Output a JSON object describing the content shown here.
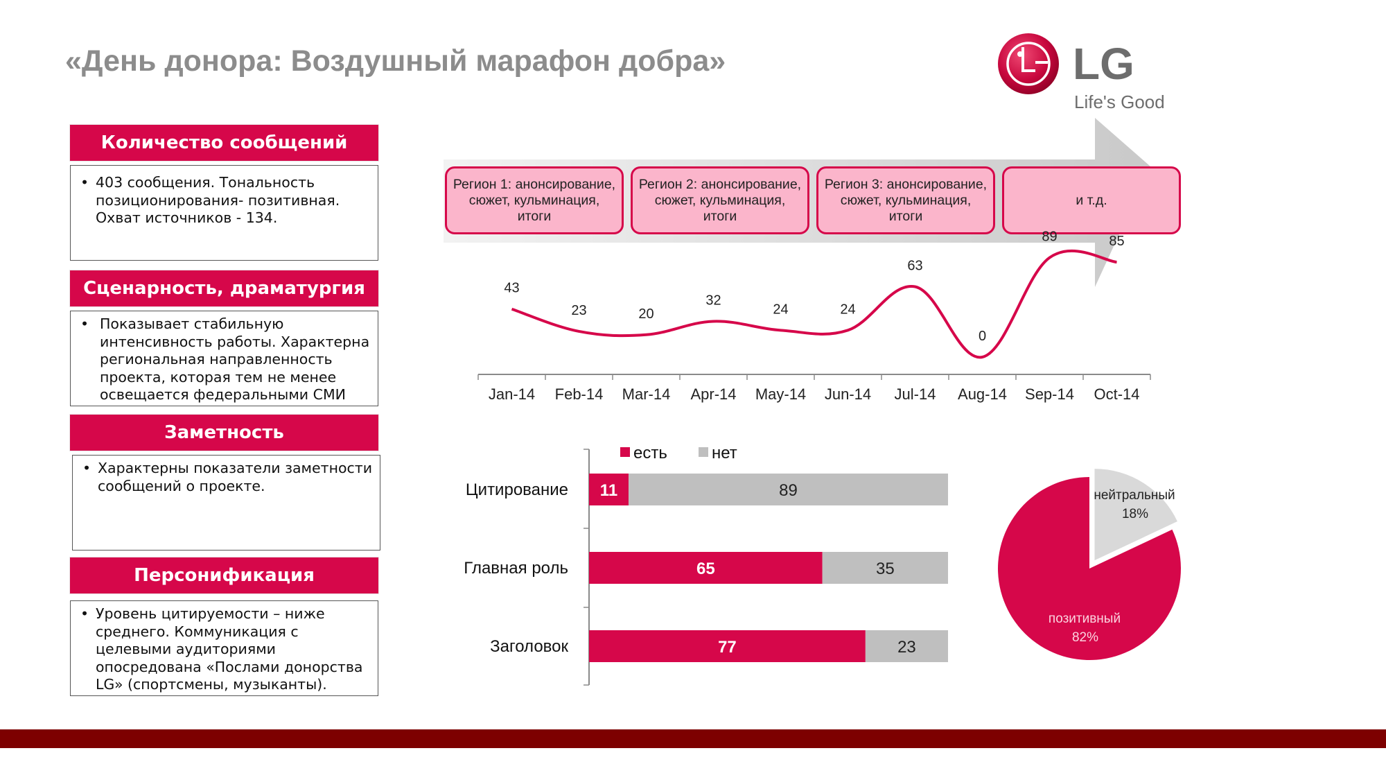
{
  "title": "«День донора: Воздушный марафон добра»",
  "logo": {
    "brand": "LG",
    "tagline": "Life's Good"
  },
  "colors": {
    "accent": "#d6074a",
    "pink": "#fbb5cb",
    "gray": "#bfbfbf",
    "footer": "#7d0000",
    "title": "#8c8c8c"
  },
  "sections": [
    {
      "heading": "Количество сообщений",
      "lines": [
        "403 сообщения.  Тональность позиционирования- позитивная. Охват источников - 134."
      ]
    },
    {
      "heading": "Сценарность, драматургия",
      "lines": [
        "Показывает стабильную интенсивность работы. Характерна региональная направленность проекта, которая тем не менее освещается федеральными СМИ"
      ]
    },
    {
      "heading": "Заметность",
      "lines": [
        "Характерны показатели заметности сообщений о проекте."
      ]
    },
    {
      "heading": "Персонификация",
      "lines": [
        "Уровень цитируемости – ниже среднего.  Коммуникация с целевыми аудиториями опосредована «Послами донорства LG» (спортсмены, музыканты)."
      ]
    }
  ],
  "regions": [
    "Регион 1: анонсирование, сюжет, кульминация, итоги",
    "Регион 2: анонсирование, сюжет, кульминация, итоги",
    "Регион 3: анонсирование, сюжет, кульминация, итоги",
    "и т.д."
  ],
  "chart_data": [
    {
      "type": "line",
      "categories": [
        "Jan-14",
        "Feb-14",
        "Mar-14",
        "Apr-14",
        "May-14",
        "Jun-14",
        "Jul-14",
        "Aug-14",
        "Sep-14",
        "Oct-14"
      ],
      "values": [
        43,
        23,
        20,
        32,
        24,
        24,
        63,
        0,
        89,
        85
      ],
      "smooth": true,
      "data_labels": true,
      "color": "#d6074a"
    },
    {
      "type": "bar",
      "orientation": "horizontal",
      "stacked": true,
      "categories": [
        "Цитирование",
        "Главная роль",
        "Заголовок"
      ],
      "series": [
        {
          "name": "есть",
          "values": [
            11,
            65,
            77
          ],
          "color": "#d6074a"
        },
        {
          "name": "нет",
          "values": [
            89,
            35,
            23
          ],
          "color": "#bfbfbf"
        }
      ],
      "legend": "top"
    },
    {
      "type": "pie",
      "slices": [
        {
          "label": "позитивный",
          "value": 82,
          "display": "82%",
          "color": "#d6074a"
        },
        {
          "label": "нейтральный",
          "value": 18,
          "display": "18%",
          "color": "#d9d9d9"
        }
      ]
    }
  ]
}
